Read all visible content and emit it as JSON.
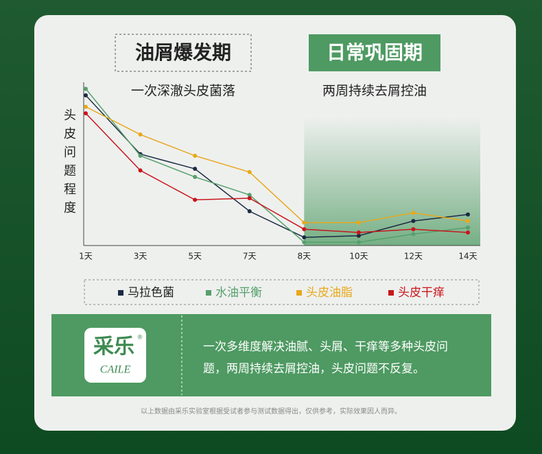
{
  "header": {
    "left_title": "油屑爆发期",
    "right_title": "日常巩固期",
    "left_subtitle": "一次深澈头皮菌落",
    "right_subtitle": "两周持续去屑控油"
  },
  "chart_data": {
    "type": "line",
    "y_label": "头皮问题程度",
    "categories": [
      "1天",
      "3天",
      "5天",
      "7天",
      "8天",
      "10天",
      "12天",
      "14天"
    ],
    "ylim": [
      0,
      100
    ],
    "series": [
      {
        "name": "马拉色菌",
        "color": "#1c2a44",
        "values": [
          92,
          56,
          47,
          21,
          5,
          6,
          15,
          19
        ]
      },
      {
        "name": "水油平衡",
        "color": "#56a06c",
        "values": [
          96,
          55,
          42,
          31,
          2,
          2,
          7,
          11
        ]
      },
      {
        "name": "头皮油脂",
        "color": "#e8a81c",
        "values": [
          85,
          68,
          55,
          45,
          14,
          14,
          20,
          15
        ]
      },
      {
        "name": "头皮干痒",
        "color": "#c8151b",
        "values": [
          81,
          46,
          28,
          29,
          10,
          8,
          10,
          8
        ]
      }
    ]
  },
  "brand": {
    "logo": "采乐",
    "registered": "®",
    "latin": "CAILE",
    "lines": [
      "一次多维度解决油腻、头屑、干痒等多种头皮问",
      "题，两周持续去屑控油，头皮问题不反复。"
    ]
  },
  "footnote": "以上数据由采乐实验室根据受试者参与测试数据得出，仅供参考，实际效果因人而异。"
}
